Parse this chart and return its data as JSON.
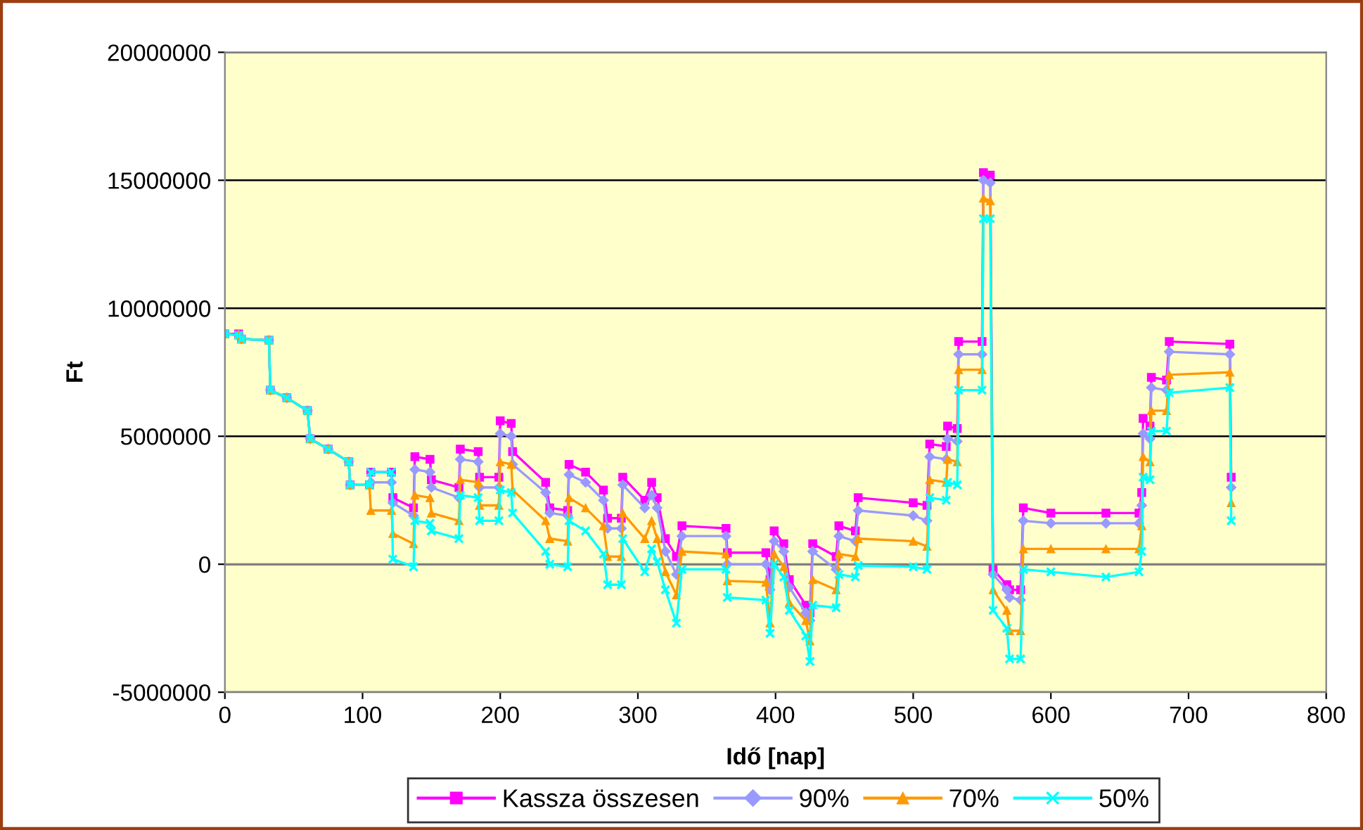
{
  "chart_data": {
    "type": "line",
    "xlabel": "Idő [nap]",
    "ylabel": "Ft",
    "x": [
      0,
      10,
      12,
      32,
      33,
      45,
      60,
      62,
      75,
      90,
      91,
      105,
      106,
      121,
      122,
      137,
      138,
      149,
      150,
      170,
      171,
      184,
      185,
      199,
      200,
      208,
      209,
      233,
      236,
      249,
      250,
      262,
      275,
      278,
      288,
      289,
      305,
      310,
      314,
      320,
      328,
      332,
      364,
      365,
      393,
      396,
      399,
      406,
      410,
      422,
      425,
      427,
      444,
      446,
      458,
      460,
      500,
      510,
      512,
      524,
      525,
      532,
      533,
      550,
      551,
      556,
      558,
      568,
      570,
      578,
      580,
      600,
      640,
      664,
      666,
      667,
      672,
      673,
      684,
      686,
      730,
      731
    ],
    "series": [
      {
        "name": "Kassza összesen",
        "color": "#ff00ff",
        "marker": "square",
        "values": [
          9000000,
          9000000,
          8800000,
          8750000,
          6800000,
          6500000,
          6000000,
          4900000,
          4500000,
          4000000,
          3100000,
          3100000,
          3600000,
          3600000,
          2600000,
          2200000,
          4200000,
          4100000,
          3300000,
          3000000,
          4500000,
          4400000,
          3400000,
          3400000,
          5600000,
          5500000,
          4400000,
          3200000,
          2200000,
          2100000,
          3900000,
          3600000,
          2900000,
          1800000,
          1800000,
          3400000,
          2500000,
          3200000,
          2600000,
          1000000,
          300000,
          1500000,
          1400000,
          450000,
          450000,
          -600000,
          1300000,
          800000,
          -600000,
          -1600000,
          -1900000,
          800000,
          300000,
          1500000,
          1300000,
          2600000,
          2400000,
          2300000,
          4700000,
          4600000,
          5400000,
          5300000,
          8700000,
          8700000,
          15300000,
          15200000,
          -200000,
          -800000,
          -1000000,
          -1000000,
          2200000,
          2000000,
          2000000,
          2000000,
          2800000,
          5700000,
          5400000,
          7300000,
          7200000,
          8700000,
          8600000,
          3400000
        ]
      },
      {
        "name": "90%",
        "color": "#9999ff",
        "marker": "diamond",
        "values": [
          9000000,
          8950000,
          8800000,
          8750000,
          6800000,
          6500000,
          6000000,
          4900000,
          4500000,
          4000000,
          3100000,
          3100000,
          3200000,
          3200000,
          2400000,
          1900000,
          3700000,
          3600000,
          3000000,
          2600000,
          4100000,
          4000000,
          3000000,
          3000000,
          5100000,
          5000000,
          3900000,
          2800000,
          2000000,
          1900000,
          3500000,
          3200000,
          2500000,
          1400000,
          1400000,
          3100000,
          2200000,
          2700000,
          2200000,
          500000,
          -400000,
          1100000,
          1100000,
          0,
          0,
          -1000000,
          900000,
          500000,
          -900000,
          -1900000,
          -2200000,
          500000,
          -200000,
          1100000,
          900000,
          2100000,
          1900000,
          1700000,
          4200000,
          4100000,
          4900000,
          4800000,
          8200000,
          8200000,
          15000000,
          14900000,
          -400000,
          -1000000,
          -1300000,
          -1400000,
          1700000,
          1600000,
          1600000,
          1600000,
          2300000,
          5100000,
          4900000,
          6900000,
          6800000,
          8300000,
          8200000,
          3000000
        ]
      },
      {
        "name": "70%",
        "color": "#ff9900",
        "marker": "triangle",
        "values": [
          9000000,
          8950000,
          8800000,
          8750000,
          6800000,
          6500000,
          6000000,
          4900000,
          4500000,
          4000000,
          3100000,
          3100000,
          2100000,
          2100000,
          1200000,
          800000,
          2700000,
          2600000,
          2000000,
          1700000,
          3300000,
          3200000,
          2300000,
          2300000,
          4000000,
          3900000,
          2900000,
          1700000,
          1000000,
          900000,
          2600000,
          2200000,
          1500000,
          300000,
          300000,
          2000000,
          1000000,
          1700000,
          1000000,
          -300000,
          -1200000,
          500000,
          400000,
          -650000,
          -700000,
          -2300000,
          400000,
          -100000,
          -1500000,
          -2200000,
          -3000000,
          -600000,
          -1000000,
          400000,
          300000,
          1000000,
          900000,
          700000,
          3300000,
          3200000,
          4100000,
          4000000,
          7600000,
          7600000,
          14300000,
          14200000,
          -1000000,
          -1800000,
          -2600000,
          -2600000,
          600000,
          600000,
          600000,
          600000,
          1500000,
          4200000,
          4000000,
          6000000,
          6000000,
          7400000,
          7500000,
          2400000
        ]
      },
      {
        "name": "50%",
        "color": "#00ffff",
        "marker": "cross",
        "values": [
          9000000,
          8950000,
          8800000,
          8750000,
          6800000,
          6500000,
          6000000,
          4900000,
          4500000,
          4000000,
          3100000,
          3100000,
          3600000,
          3600000,
          200000,
          -100000,
          1700000,
          1600000,
          1300000,
          1000000,
          2700000,
          2600000,
          1700000,
          1700000,
          2900000,
          2800000,
          2000000,
          500000,
          0,
          -100000,
          1700000,
          1300000,
          400000,
          -800000,
          -800000,
          1000000,
          -300000,
          600000,
          100000,
          -1000000,
          -2300000,
          -200000,
          -200000,
          -1300000,
          -1400000,
          -2700000,
          0,
          -500000,
          -1800000,
          -2800000,
          -3800000,
          -1600000,
          -1700000,
          -400000,
          -500000,
          -50000,
          -100000,
          -200000,
          2600000,
          2500000,
          3200000,
          3100000,
          6800000,
          6800000,
          13500000,
          13500000,
          -1800000,
          -2500000,
          -3700000,
          -3700000,
          -200000,
          -300000,
          -500000,
          -300000,
          500000,
          3400000,
          3300000,
          5200000,
          5200000,
          6700000,
          6900000,
          1700000
        ]
      }
    ],
    "xlim": [
      0,
      800
    ],
    "xticks": [
      0,
      100,
      200,
      300,
      400,
      500,
      600,
      700,
      800
    ],
    "ylim": [
      -5000000,
      20000000
    ],
    "yticks": [
      -5000000,
      0,
      5000000,
      10000000,
      15000000,
      20000000
    ],
    "grid": "y",
    "legend": "bottom",
    "line_style": "solid"
  }
}
